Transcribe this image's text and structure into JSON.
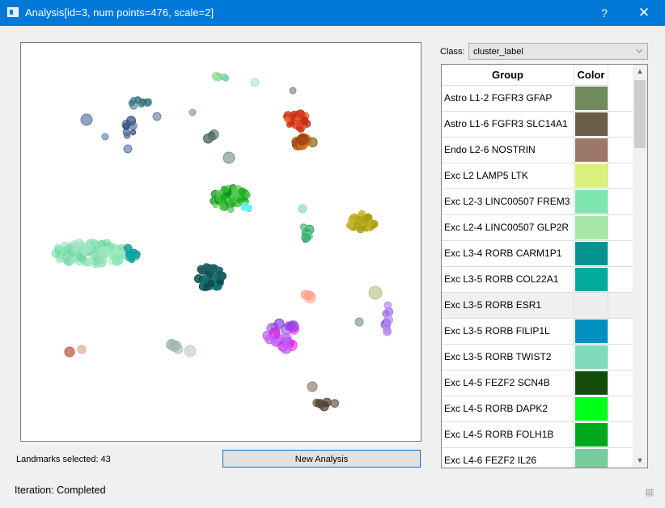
{
  "window": {
    "title": "Analysis[id=3, num points=476, scale=2]",
    "help_glyph": "?",
    "close_glyph": "✕",
    "icon": "window-icon"
  },
  "class_selector": {
    "label": "Class:",
    "value": "cluster_label"
  },
  "table": {
    "headers": {
      "group": "Group",
      "color": "Color"
    },
    "rows": [
      {
        "group": "Astro L1-2 FGFR3 GFAP",
        "color": "#6f8a5c"
      },
      {
        "group": "Astro L1-6 FGFR3 SLC14A1",
        "color": "#6b5d48"
      },
      {
        "group": "Endo L2-6 NOSTRIN",
        "color": "#9c776a"
      },
      {
        "group": "Exc L2 LAMP5 LTK",
        "color": "#d9f07a"
      },
      {
        "group": "Exc L2-3 LINC00507 FREM3",
        "color": "#7fe6b0"
      },
      {
        "group": "Exc L2-4 LINC00507 GLP2R",
        "color": "#a6e6a6"
      },
      {
        "group": "Exc L3-4 RORB CARM1P1",
        "color": "#039490"
      },
      {
        "group": "Exc L3-5 RORB COL22A1",
        "color": "#00ab9e"
      },
      {
        "group": "Exc L3-5 RORB ESR1",
        "color": "#eeeeee"
      },
      {
        "group": "Exc L3-5 RORB FILIP1L",
        "color": "#0090c0"
      },
      {
        "group": "Exc L3-5 RORB TWIST2",
        "color": "#7ddbb9"
      },
      {
        "group": "Exc L4-5 FEZF2 SCN4B",
        "color": "#144d0b"
      },
      {
        "group": "Exc L4-5 RORB DAPK2",
        "color": "#00ff19"
      },
      {
        "group": "Exc L4-5 RORB FOLH1B",
        "color": "#00a91c"
      },
      {
        "group": "Exc L4-6 FEZF2 IL26",
        "color": "#79cc9b"
      }
    ],
    "selected_row": "Exc L3-5 RORB ESR1"
  },
  "status": {
    "landmarks": "Landmarks selected: 43",
    "new_analysis": "New Analysis",
    "iteration": "Iteration: Completed"
  }
}
